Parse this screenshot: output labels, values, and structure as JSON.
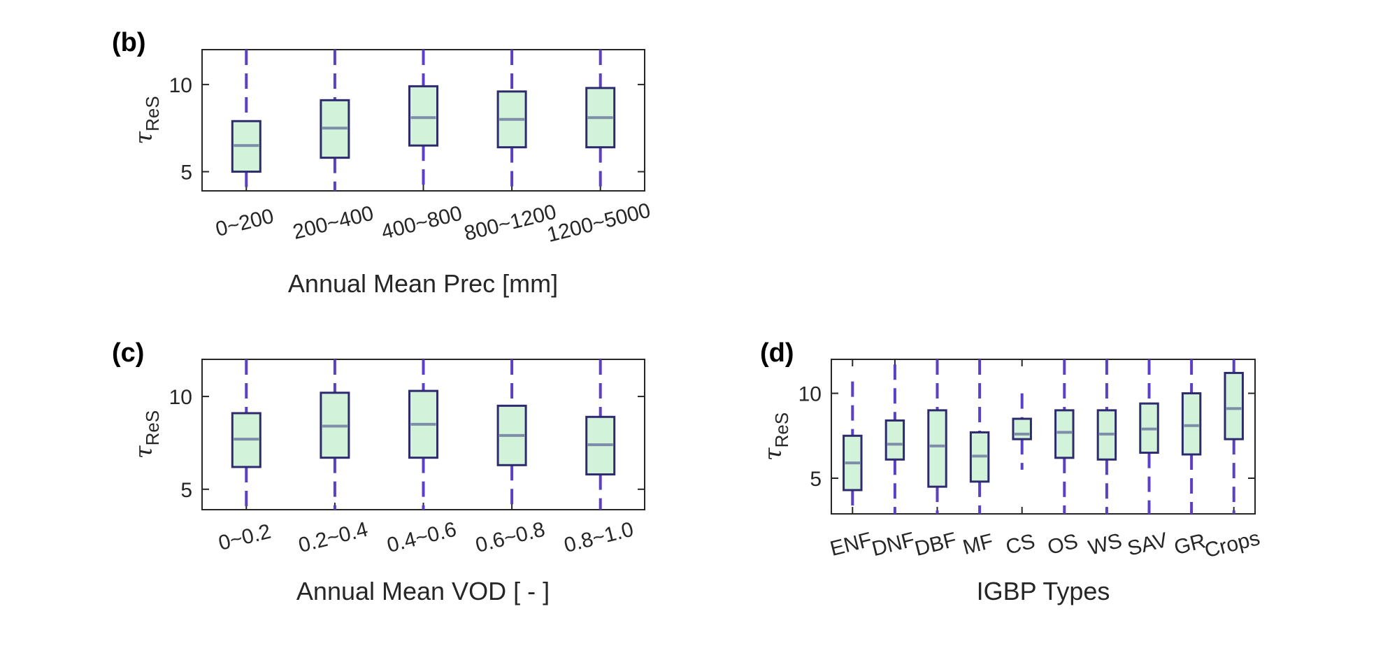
{
  "colors": {
    "box_fill": "#d2f3da",
    "box_edge": "#2e2a6e",
    "median": "#7f8ea8",
    "whisker": "#5b3fc4",
    "axis": "#262626"
  },
  "chart_data": [
    {
      "type": "boxplot",
      "panel_label": "(b)",
      "xlabel": "Annual Mean Prec [mm]",
      "ylabel": "τ",
      "ylabel_sub": "ReS",
      "ylim": [
        3.9,
        12.0
      ],
      "yticks": [
        5,
        10
      ],
      "categories": [
        "0~200",
        "200~400",
        "400~800",
        "800~1200",
        "1200~5000"
      ],
      "boxes": [
        {
          "whisker_low": 3.9,
          "q1": 5.0,
          "median": 6.5,
          "q3": 7.9,
          "whisker_high": 12.0
        },
        {
          "whisker_low": 3.9,
          "q1": 5.8,
          "median": 7.5,
          "q3": 9.1,
          "whisker_high": 12.0
        },
        {
          "whisker_low": 3.9,
          "q1": 6.5,
          "median": 8.1,
          "q3": 9.9,
          "whisker_high": 12.0
        },
        {
          "whisker_low": 3.9,
          "q1": 6.4,
          "median": 8.0,
          "q3": 9.6,
          "whisker_high": 12.0
        },
        {
          "whisker_low": 3.9,
          "q1": 6.4,
          "median": 8.1,
          "q3": 9.8,
          "whisker_high": 12.0
        }
      ]
    },
    {
      "type": "boxplot",
      "panel_label": "(c)",
      "xlabel": "Annual Mean VOD [ - ]",
      "ylabel": "τ",
      "ylabel_sub": "ReS",
      "ylim": [
        3.9,
        12.0
      ],
      "yticks": [
        5,
        10
      ],
      "categories": [
        "0~0.2",
        "0.2~0.4",
        "0.4~0.6",
        "0.6~0.8",
        "0.8~1.0"
      ],
      "boxes": [
        {
          "whisker_low": 3.9,
          "q1": 6.2,
          "median": 7.7,
          "q3": 9.1,
          "whisker_high": 12.0
        },
        {
          "whisker_low": 3.9,
          "q1": 6.7,
          "median": 8.4,
          "q3": 10.2,
          "whisker_high": 12.0
        },
        {
          "whisker_low": 3.9,
          "q1": 6.7,
          "median": 8.5,
          "q3": 10.3,
          "whisker_high": 12.0
        },
        {
          "whisker_low": 3.9,
          "q1": 6.3,
          "median": 7.9,
          "q3": 9.5,
          "whisker_high": 12.0
        },
        {
          "whisker_low": 3.9,
          "q1": 5.8,
          "median": 7.4,
          "q3": 8.9,
          "whisker_high": 12.0
        }
      ]
    },
    {
      "type": "boxplot",
      "panel_label": "(d)",
      "xlabel": "IGBP Types",
      "ylabel": "τ",
      "ylabel_sub": "ReS",
      "ylim": [
        2.9,
        12.0
      ],
      "yticks": [
        5,
        10
      ],
      "categories": [
        "ENF",
        "DNF",
        "DBF",
        "MF",
        "CS",
        "OS",
        "WS",
        "SAV",
        "GR",
        "Crops"
      ],
      "boxes": [
        {
          "whisker_low": 3.2,
          "q1": 4.3,
          "median": 5.9,
          "q3": 7.5,
          "whisker_high": 10.7
        },
        {
          "whisker_low": 2.9,
          "q1": 6.1,
          "median": 7.0,
          "q3": 8.4,
          "whisker_high": 11.7
        },
        {
          "whisker_low": 2.9,
          "q1": 4.5,
          "median": 6.9,
          "q3": 9.0,
          "whisker_high": 12.0
        },
        {
          "whisker_low": 2.9,
          "q1": 4.8,
          "median": 6.3,
          "q3": 7.7,
          "whisker_high": 12.0
        },
        {
          "whisker_low": 5.5,
          "q1": 7.3,
          "median": 7.6,
          "q3": 8.5,
          "whisker_high": 10.0
        },
        {
          "whisker_low": 2.9,
          "q1": 6.2,
          "median": 7.7,
          "q3": 9.0,
          "whisker_high": 12.0
        },
        {
          "whisker_low": 2.9,
          "q1": 6.1,
          "median": 7.6,
          "q3": 9.0,
          "whisker_high": 12.0
        },
        {
          "whisker_low": 2.9,
          "q1": 6.5,
          "median": 7.9,
          "q3": 9.4,
          "whisker_high": 12.0
        },
        {
          "whisker_low": 2.9,
          "q1": 6.4,
          "median": 8.1,
          "q3": 10.0,
          "whisker_high": 12.0
        },
        {
          "whisker_low": 2.9,
          "q1": 7.3,
          "median": 9.1,
          "q3": 11.2,
          "whisker_high": 12.0
        }
      ]
    }
  ]
}
